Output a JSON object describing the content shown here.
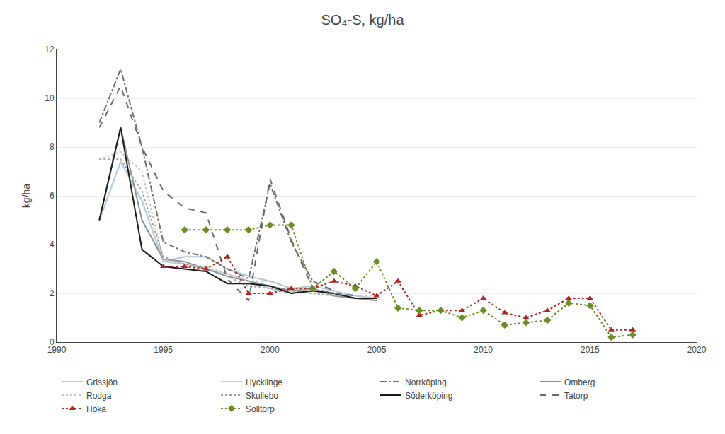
{
  "chart_data": {
    "type": "line",
    "title": "SO₄-S, kg/ha",
    "ylabel": "kg/ha",
    "xlim": [
      1990,
      2020
    ],
    "ylim": [
      0,
      12
    ],
    "xticks": [
      1990,
      1995,
      2000,
      2005,
      2010,
      2015,
      2020
    ],
    "yticks": [
      0,
      2,
      4,
      6,
      8,
      10,
      12
    ],
    "grid": "y",
    "legend": "bottom",
    "series": [
      {
        "name": "Grissjön",
        "color": "#adc6e0",
        "line_style": "solid",
        "x": [
          1992,
          1993,
          1994,
          1995,
          1996,
          1997,
          1998,
          1999,
          2000,
          2001,
          2002,
          2003,
          2004,
          2005
        ],
        "values": [
          5.0,
          7.4,
          5.8,
          3.3,
          3.5,
          3.5,
          3.0,
          2.7,
          2.5,
          2.2,
          2.3,
          2.1,
          1.9,
          1.8
        ]
      },
      {
        "name": "Hycklinge",
        "color": "#b8cfe0",
        "line_style": "solid",
        "x": [
          1992,
          1993,
          1994,
          1995,
          1996,
          1997,
          1998,
          1999,
          2000,
          2001,
          2002,
          2003,
          2004,
          2005
        ],
        "values": [
          5.0,
          7.4,
          5.8,
          3.3,
          3.2,
          3.0,
          2.8,
          2.5,
          2.2,
          2.0,
          2.2,
          1.9,
          1.8,
          1.7
        ]
      },
      {
        "name": "Norrköping",
        "color": "#707070",
        "line_style": "dashdot",
        "x": [
          1992,
          1993,
          1994,
          1995,
          1996,
          1997,
          1998,
          1999,
          2000,
          2001,
          2002,
          2003
        ],
        "values": [
          9.0,
          11.2,
          8.0,
          4.1,
          3.7,
          3.5,
          3.0,
          2.6,
          6.5,
          4.1,
          2.5,
          2.1
        ]
      },
      {
        "name": "Omberg",
        "color": "#909090",
        "line_style": "solid",
        "x": [
          1992,
          1993,
          1994,
          1995,
          1996,
          1997,
          1998,
          1999,
          2000,
          2001,
          2002,
          2003,
          2004,
          2005
        ],
        "values": [
          5.0,
          8.8,
          5.0,
          3.4,
          3.3,
          3.0,
          2.7,
          2.5,
          2.3,
          2.1,
          2.2,
          1.9,
          1.8,
          1.7
        ]
      },
      {
        "name": "Rodga",
        "color": "#c0c0c0",
        "line_style": "dotted",
        "x": [
          1992,
          1993,
          1994,
          1995,
          1996,
          1997,
          1998,
          1999,
          2000,
          2001,
          2002,
          2003,
          2004,
          2005
        ],
        "values": [
          7.5,
          7.8,
          7.0,
          3.4,
          3.2,
          3.1,
          2.8,
          2.5,
          2.5,
          2.2,
          2.1,
          2.0,
          1.9,
          1.9
        ]
      },
      {
        "name": "Skullebo",
        "color": "#a0a0a0",
        "line_style": "dotted",
        "x": [
          1992,
          1993,
          1994,
          1995,
          1996,
          1997,
          1998,
          1999,
          2000,
          2001,
          2002,
          2003,
          2004,
          2005
        ],
        "values": [
          7.5,
          7.5,
          6.2,
          3.5,
          3.2,
          3.0,
          2.7,
          2.3,
          2.2,
          2.1,
          2.0,
          1.9,
          1.8,
          1.8
        ]
      },
      {
        "name": "Söderköping",
        "color": "#1a1a1a",
        "line_style": "solid",
        "x": [
          1992,
          1993,
          1994,
          1995,
          1996,
          1997,
          1998,
          1999,
          2000,
          2001,
          2002,
          2003,
          2004,
          2005
        ],
        "values": [
          5.0,
          8.8,
          3.8,
          3.1,
          3.0,
          2.9,
          2.4,
          2.4,
          2.3,
          2.0,
          2.1,
          2.0,
          1.8,
          1.8
        ]
      },
      {
        "name": "Tatorp",
        "color": "#696969",
        "line_style": "dashed",
        "x": [
          1992,
          1993,
          1994,
          1995,
          1996,
          1997,
          1998,
          1999,
          2000,
          2001,
          2002,
          2003,
          2004
        ],
        "values": [
          8.8,
          10.5,
          8.0,
          6.2,
          5.5,
          5.3,
          2.6,
          1.7,
          6.7,
          4.2,
          2.2,
          2.0,
          1.9
        ]
      },
      {
        "name": "Höka",
        "color": "#b22222",
        "line_style": "dotted",
        "marker": "triangle",
        "x": [
          1995,
          1996,
          1997,
          1998,
          1999,
          2000,
          2001,
          2002,
          2003,
          2004,
          2005,
          2006,
          2007,
          2008,
          2009,
          2010,
          2011,
          2012,
          2013,
          2014,
          2015,
          2016,
          2017
        ],
        "values": [
          3.1,
          3.1,
          3.0,
          3.5,
          2.0,
          2.0,
          2.2,
          2.2,
          2.5,
          2.3,
          1.9,
          2.5,
          1.1,
          1.3,
          1.3,
          1.8,
          1.2,
          1.0,
          1.3,
          1.8,
          1.8,
          0.5,
          0.5
        ]
      },
      {
        "name": "Solltorp",
        "color": "#6b8e23",
        "line_style": "dotted",
        "marker": "diamond",
        "x": [
          1996,
          1997,
          1998,
          1999,
          2000,
          2001,
          2002,
          2003,
          2004,
          2005,
          2006,
          2007,
          2008,
          2009,
          2010,
          2011,
          2012,
          2013,
          2014,
          2015,
          2016,
          2017
        ],
        "values": [
          4.6,
          4.6,
          4.6,
          4.6,
          4.8,
          4.8,
          2.2,
          2.9,
          2.2,
          3.3,
          1.4,
          1.3,
          1.3,
          1.0,
          1.3,
          0.7,
          0.8,
          0.9,
          1.6,
          1.5,
          0.2,
          0.3
        ]
      }
    ]
  }
}
